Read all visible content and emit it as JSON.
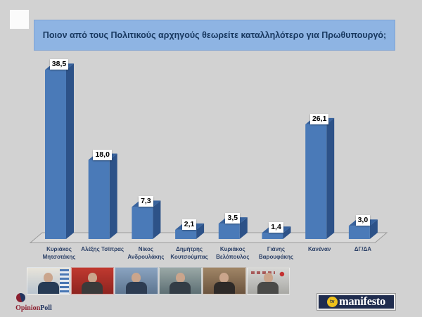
{
  "title": "Ποιον από τους Πολιτικούς αρχηγούς θεωρείτε καταλληλότερο για Πρωθυπουργό;",
  "chart_data": {
    "type": "bar",
    "style": "3d-column",
    "title": "Ποιον από τους Πολιτικούς αρχηγούς θεωρείτε καταλληλότερο για Πρωθυπουργό;",
    "categories": [
      "Κυριάκος Μητσοτάκης",
      "Αλέξης Τσίπρας",
      "Νίκος Ανδρουλάκης",
      "Δημήτρης Κουτσούμπας",
      "Κυριάκος Βελόπουλος",
      "Γιάνης Βαρουφάκης",
      "Κανέναν",
      "ΔΓ/ΔΑ"
    ],
    "values": [
      38.5,
      18.0,
      7.3,
      2.1,
      3.5,
      1.4,
      26.1,
      3.0
    ],
    "value_labels": [
      "38,5",
      "18,0",
      "7,3",
      "2,1",
      "3,5",
      "1,4",
      "26,1",
      "3,0"
    ],
    "xlabel": "",
    "ylabel": "",
    "ylim": [
      0,
      40
    ],
    "grid": false,
    "legend": false,
    "axis_labels_visible": false,
    "bar_front_color": "#4a7ab8",
    "bar_side_color": "#2d5288",
    "bar_top_color": "#38639e",
    "value_label_bg": "#ffffff",
    "value_label_color": "#000000",
    "category_label_color": "#2a3f66",
    "floor_fill": "#d9d9d9",
    "floor_stroke": "#9b9b9b"
  },
  "photos": [
    {
      "name": "photo-mitsotakis",
      "bg1": "#e8e4da",
      "bg2": "#b9c4cf",
      "suit": "#273b55",
      "accent": "greek-flag"
    },
    {
      "name": "photo-tsipras",
      "bg1": "#c0392f",
      "bg2": "#8e2420",
      "suit": "#3a3a3a",
      "accent": "none"
    },
    {
      "name": "photo-androulakis",
      "bg1": "#8aa3c0",
      "bg2": "#5d7590",
      "suit": "#2d3c52",
      "accent": "none"
    },
    {
      "name": "photo-koutsoumpas",
      "bg1": "#9aa8a6",
      "bg2": "#5d6f74",
      "suit": "#333d46",
      "accent": "none"
    },
    {
      "name": "photo-velopoulos",
      "bg1": "#a08566",
      "bg2": "#6b543e",
      "suit": "#2e2a28",
      "accent": "none"
    },
    {
      "name": "photo-varoufakis",
      "bg1": "#d8d8d6",
      "bg2": "#a8a8a4",
      "suit": "#4a4a48",
      "accent": "red-logo"
    }
  ],
  "branding": {
    "opinionpoll": {
      "text_opinion": "Opinion",
      "text_poll": "Poll",
      "color_opinion": "#8c1f2f",
      "color_poll": "#20335f",
      "circle_left_color": "#8c1f2f",
      "circle_right_color": "#22345f"
    },
    "manifesto": {
      "tv": "tv",
      "name": "manifesto",
      "bg": "#1f2c4e",
      "circle": "#edc11c"
    }
  },
  "colors": {
    "background": "#d2d2d2",
    "banner_bg": "#8eb4e3",
    "banner_text": "#17375e"
  }
}
